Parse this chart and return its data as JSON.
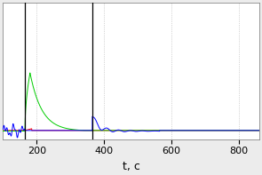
{
  "xlim": [
    100,
    860
  ],
  "ylim": [
    -0.015,
    0.22
  ],
  "xlabel": "t, c",
  "xlabel_fontsize": 9,
  "tick_fontsize": 8,
  "xticks": [
    200,
    400,
    600,
    800
  ],
  "yticks": [],
  "bg_color": "#ececec",
  "plot_bg_color": "#ffffff",
  "grid_color": "#b0b0b0",
  "grid_linestyle": ":",
  "vline1_x": 165,
  "vline2_x": 365,
  "vline_color": "#000000",
  "blue_color": "#0000ff",
  "green_color": "#00cc00",
  "red_color": "#ff0000",
  "line_width": 0.7,
  "baseline": 0.0,
  "green_peak": 0.1,
  "green_peak_t": 180,
  "green_decay": 35,
  "blue_osc_amp": 0.007,
  "blue_osc_freq": 0.25,
  "blue_spike_amp": 0.025,
  "blue_spike_t": 370,
  "blue_spike_decay": 18,
  "blue_ripple_amp": 0.006,
  "blue_ripple_decay": 60,
  "blue_ripple_freq": 0.18
}
